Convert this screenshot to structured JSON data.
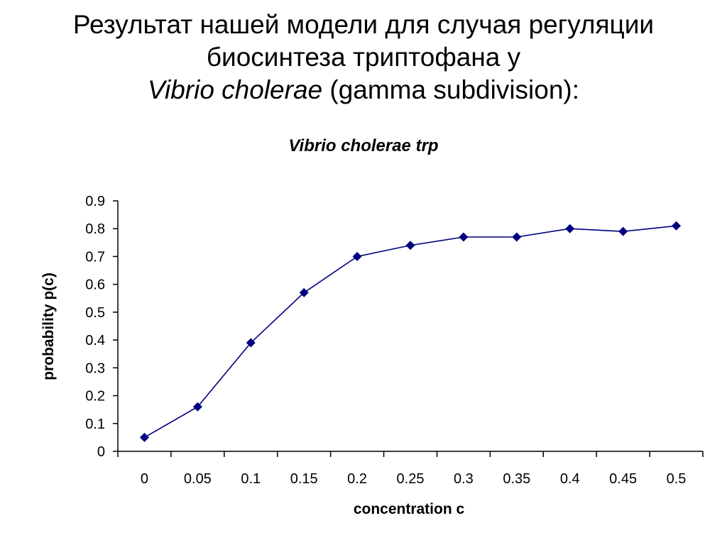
{
  "slide": {
    "title_line1": "Результат нашей модели для случая регуляции",
    "title_line2": "биосинтеза триптофана у",
    "title_line3_italic": "Vibrio cholerae",
    "title_line3_rest": " (gamma subdivision):"
  },
  "chart_data": {
    "type": "line",
    "title": "Vibrio cholerae trp",
    "xlabel": "concentration c",
    "ylabel": "probability p(c)",
    "x": [
      "0",
      "0.05",
      "0.1",
      "0.15",
      "0.2",
      "0.25",
      "0.3",
      "0.35",
      "0.4",
      "0.45",
      "0.5"
    ],
    "series": [
      {
        "values": [
          0.05,
          0.16,
          0.39,
          0.57,
          0.7,
          0.74,
          0.77,
          0.77,
          0.8,
          0.79,
          0.81
        ],
        "color": "#000080",
        "marker": "diamond"
      }
    ],
    "ylim": [
      0,
      0.9
    ],
    "yticks": [
      "0",
      "0.1",
      "0.2",
      "0.3",
      "0.4",
      "0.5",
      "0.6",
      "0.7",
      "0.8",
      "0.9"
    ],
    "grid": false,
    "legend": "none"
  }
}
